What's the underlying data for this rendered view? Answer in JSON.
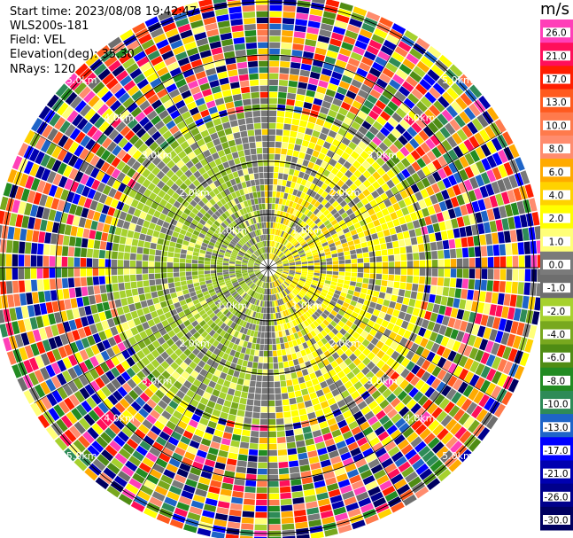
{
  "header": {
    "start_time": "Start time: 2023/08/08 19:42:47",
    "instrument": "WLS200s-181",
    "field": "Field: VEL",
    "elevation": "Elevation(deg): 35.30",
    "nrays": "NRays: 120"
  },
  "colorbar": {
    "unit": "m/s",
    "ticks": [
      "26.0",
      "21.0",
      "17.0",
      "13.0",
      "10.0",
      "8.0",
      "6.0",
      "4.0",
      "2.0",
      "1.0",
      "0.0",
      "-1.0",
      "-2.0",
      "-4.0",
      "-6.0",
      "-8.0",
      "-10.0",
      "-13.0",
      "-17.0",
      "-21.0",
      "-26.0",
      "-30.0"
    ],
    "colors": [
      "#ff3fb8",
      "#ff0f5a",
      "#ff1e00",
      "#ff5a1e",
      "#ff7a4c",
      "#ff8c6e",
      "#ffaa00",
      "#ffd200",
      "#ffff00",
      "#ffff78",
      "#7a7a7a",
      "#6e6e6e",
      "#a6d12e",
      "#78a81e",
      "#4f8c14",
      "#228b22",
      "#2e8b57",
      "#1e64c8",
      "#0000ff",
      "#0000b0",
      "#00008b",
      "#000060"
    ]
  },
  "rings": {
    "labels": [
      "1.0km",
      "2.0km",
      "3.0km",
      "4.0km",
      "5.0km"
    ]
  }
}
